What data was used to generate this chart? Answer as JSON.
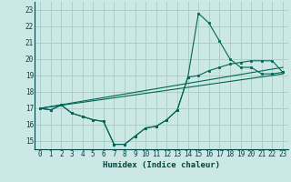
{
  "xlabel": "Humidex (Indice chaleur)",
  "background_color": "#cce8e4",
  "grid_color": "#aacfcb",
  "line_color": "#006655",
  "xlim": [
    -0.5,
    23.5
  ],
  "ylim": [
    14.5,
    23.5
  ],
  "yticks": [
    15,
    16,
    17,
    18,
    19,
    20,
    21,
    22,
    23
  ],
  "xticks": [
    0,
    1,
    2,
    3,
    4,
    5,
    6,
    7,
    8,
    9,
    10,
    11,
    12,
    13,
    14,
    15,
    16,
    17,
    18,
    19,
    20,
    21,
    22,
    23
  ],
  "line1_x": [
    0,
    1,
    2,
    3,
    4,
    5,
    6,
    7,
    8,
    9,
    10,
    11,
    12,
    13,
    14,
    15,
    16,
    17,
    18,
    19,
    20,
    21,
    22,
    23
  ],
  "line1_y": [
    17.0,
    16.9,
    17.2,
    16.7,
    16.5,
    16.3,
    16.2,
    14.8,
    14.8,
    15.3,
    15.8,
    15.9,
    16.3,
    16.9,
    18.9,
    22.8,
    22.2,
    21.1,
    20.0,
    19.5,
    19.5,
    19.1,
    19.1,
    19.2
  ],
  "line2_x": [
    0,
    1,
    2,
    3,
    4,
    5,
    6,
    7,
    8,
    9,
    10,
    11,
    12,
    13,
    14,
    15,
    16,
    17,
    18,
    19,
    20,
    21,
    22,
    23
  ],
  "line2_y": [
    17.0,
    16.9,
    17.2,
    16.7,
    16.5,
    16.3,
    16.2,
    14.8,
    14.8,
    15.3,
    15.8,
    15.9,
    16.3,
    16.9,
    18.9,
    19.0,
    19.3,
    19.5,
    19.7,
    19.8,
    19.9,
    19.9,
    19.9,
    19.2
  ],
  "line3_x": [
    0,
    23
  ],
  "line3_y": [
    17.0,
    19.5
  ],
  "line4_x": [
    0,
    23
  ],
  "line4_y": [
    17.0,
    19.1
  ]
}
